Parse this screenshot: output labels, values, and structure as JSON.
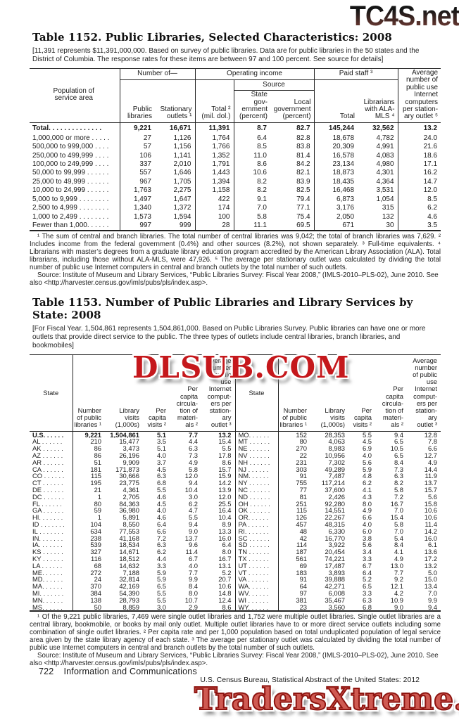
{
  "watermarks": {
    "top": "TC4S.net",
    "middle": "DLSUB.COM",
    "bottom": "TradersXtreme.com"
  },
  "footer": {
    "page": "722",
    "section": "Information and Communications",
    "credit": "U.S. Census Bureau, Statistical Abstract of the United States: 2012"
  },
  "table1152": {
    "title": "Table 1152. Public Libraries, Selected Characteristics: 2008",
    "headnote": "[11,391 represents $11,391,000,000. Based on survey of public libraries. Data are for public libraries in the 50 states and the District of Columbia. The response rates for these items are between 97 and 100 percent. See source for details]",
    "header": {
      "pop": "Population of\nservice area",
      "number_of": "Number of—",
      "operating": "Operating income",
      "source": "Source",
      "paid": "Paid staff ³",
      "avg": "Average\nnumber of\npublic use\nInternet\ncomputers\nper station-\nary outlet ⁵",
      "cols": [
        "Public\nlibraries",
        "Stationary\noutlets ¹",
        "Total ²\n(mil. dol.)",
        "State\ngov-\nernment\n(percent)",
        "Local\ngovernment\n(percent)",
        "Total",
        "Librarians\nwith ALA-\nMLS ⁴"
      ]
    },
    "rows": [
      {
        "label": "Total. . . . . . . . . . . . . .",
        "bold": true,
        "values": [
          "9,221",
          "16,671",
          "11,391",
          "8.7",
          "82.7",
          "145,244",
          "32,562",
          "13.2"
        ]
      },
      {
        "gap": true
      },
      {
        "label": "1,000,000 or more . . . . .",
        "values": [
          "27",
          "1,126",
          "1,764",
          "6.4",
          "82.8",
          "18,678",
          "4,782",
          "24.0"
        ]
      },
      {
        "label": "500,000 to 999,000 . . . .",
        "values": [
          "57",
          "1,156",
          "1,766",
          "8.5",
          "83.8",
          "20,309",
          "4,991",
          "21.6"
        ]
      },
      {
        "label": "250,000 to 499,999 . . . .",
        "values": [
          "106",
          "1,141",
          "1,352",
          "11.0",
          "81.4",
          "16,578",
          "4,083",
          "18.6"
        ]
      },
      {
        "label": "100,000 to 249,999 . . . .",
        "values": [
          "337",
          "2,010",
          "1,791",
          "8.6",
          "84.2",
          "23,134",
          "4,980",
          "17.1"
        ]
      },
      {
        "label": "50,000 to 99,999 . . . . . .",
        "values": [
          "557",
          "1,646",
          "1,443",
          "10.6",
          "82.1",
          "18,873",
          "4,301",
          "16.2"
        ]
      },
      {
        "gap": true
      },
      {
        "label": "25,000 to 49,999 . . . . . .",
        "values": [
          "967",
          "1,705",
          "1,394",
          "8.2",
          "83.9",
          "18,435",
          "4,364",
          "14.7"
        ]
      },
      {
        "label": "10,000 to 24,999 . . . . . .",
        "values": [
          "1,763",
          "2,275",
          "1,158",
          "8.2",
          "82.5",
          "16,468",
          "3,531",
          "12.0"
        ]
      },
      {
        "label": "5,000 to 9,999 . . . . . . . .",
        "values": [
          "1,497",
          "1,647",
          "422",
          "9.1",
          "79.4",
          "6,873",
          "1,054",
          "8.5"
        ]
      },
      {
        "label": "2,500 to 4,999 . . . . . . . .",
        "values": [
          "1,340",
          "1,372",
          "174",
          "7.0",
          "77.1",
          "3,176",
          "315",
          "6.2"
        ]
      },
      {
        "label": "1,000 to 2,499 . . . . . . . .",
        "values": [
          "1,573",
          "1,594",
          "100",
          "5.8",
          "75.4",
          "2,050",
          "132",
          "4.6"
        ]
      },
      {
        "label": "Fewer than 1,000. . . . . .",
        "values": [
          "997",
          "999",
          "28",
          "11.1",
          "69.5",
          "671",
          "30",
          "3.5"
        ]
      }
    ],
    "footnote": "¹ The sum of central and branch libraries. The total number of central libraries was 9,042; the total of branch libraries was 7,629. ² Includes income from the federal government (0.4%) and other sources (8.2%), not shown separately. ³ Full-time equivalents. ⁴ Librarians with master’s degrees from a graduate library education program accredited by the American Library Association (ALA). Total librarians, including those without ALA-MLS, were 47,926. ⁵ The average per stationary outlet was calculated by dividing the total number of public use Internet computers in central and branch outlets by the total number of such outlets.",
    "source": "Source: Institute of Museum and Library Services, “Public Libraries Survey: Fiscal Year 2008,” (IMLS-2010–PLS-02), June 2010. See also <http://harvester.census.gov/imls/pubs/pls/index.asp>."
  },
  "table1153": {
    "title": "Table 1153. Number of Public Libraries and Library Services by State: 2008",
    "headnote": "[For Fiscal Year. 1,504,861 represents 1,504,861,000. Based on Public Libraries Survey. Public libraries can have one or more outlets that provide direct service to the public. The three types of outlets include central libraries, branch libraries, and bookmobiles]",
    "header": {
      "state": "State",
      "cols": [
        "Number\nof public\nlibraries ¹",
        "Library\nvisits\n(1,000s)",
        "Per\ncapita\nvisits ²",
        "Per\ncapita\ncircula-\ntion of\nmateri-\nals ²",
        "Average\nnumber\nof public\nuse\nInternet\ncomput-\ners per\nstation-\nary\noutlet ³"
      ]
    },
    "left": [
      [
        "U.S. . . . . .",
        "9,221",
        "1,504,861",
        "5.1",
        "7.7",
        "13.2"
      ],
      [
        "AL . . . . . .",
        "210",
        "15,477",
        "3.5",
        "4.4",
        "15.4"
      ],
      [
        "AK . . . . . .",
        "86",
        "3,473",
        "5.1",
        "6.3",
        "5.5"
      ],
      [
        "AZ . . . . . .",
        "86",
        "26,196",
        "4.0",
        "7.3",
        "17.8"
      ],
      [
        "AR . . . . . .",
        "51",
        "9,909",
        "3.7",
        "4.9",
        "8.6"
      ],
      [
        "CA . . . . . .",
        "181",
        "171,873",
        "4.5",
        "5.8",
        "15.7"
      ],
      [
        "CO . . . . . .",
        "115",
        "30,666",
        "6.3",
        "12.0",
        "15.9"
      ],
      [
        "CT . . . . . .",
        "195",
        "23,775",
        "6.8",
        "9.4",
        "14.2"
      ],
      [
        "DE . . . . . .",
        "21",
        "4,361",
        "5.5",
        "10.4",
        "13.9"
      ],
      [
        "DC . . . . . .",
        "1",
        "2,705",
        "4.6",
        "3.0",
        "12.0"
      ],
      [
        "FL . . . . . .",
        "80",
        "84,363",
        "4.5",
        "6.2",
        "25.5"
      ],
      [
        "GA . . . . . .",
        "59",
        "36,980",
        "4.0",
        "4.7",
        "16.4"
      ],
      [
        "HI. . . . . . .",
        "1",
        "5,891",
        "4.6",
        "5.5",
        "10.4"
      ],
      [
        "ID . . . . . . .",
        "104",
        "8,550",
        "6.4",
        "9.4",
        "8.9"
      ],
      [
        "IL . . . . . . .",
        "634",
        "77,553",
        "6.6",
        "9.0",
        "13.3"
      ],
      [
        "IN. . . . . . .",
        "238",
        "41,168",
        "7.2",
        "13.7",
        "16.0"
      ],
      [
        "IA. . . . . . .",
        "539",
        "18,534",
        "6.3",
        "9.6",
        "6.4"
      ],
      [
        "KS . . . . . .",
        "327",
        "14,671",
        "6.2",
        "11.4",
        "8.0"
      ],
      [
        "KY . . . . . .",
        "116",
        "18,512",
        "4.4",
        "6.7",
        "16.7"
      ],
      [
        "LA . . . . . .",
        "68",
        "14,632",
        "3.3",
        "4.0",
        "13.1"
      ],
      [
        "ME. . . . . .",
        "272",
        "7,188",
        "5.9",
        "7.7",
        "5.2"
      ],
      [
        "MD. . . . . .",
        "24",
        "32,814",
        "5.9",
        "9.9",
        "20.7"
      ],
      [
        "MA. . . . . .",
        "370",
        "42,169",
        "6.5",
        "8.4",
        "10.6"
      ],
      [
        "MI. . . . . . .",
        "384",
        "54,390",
        "5.5",
        "8.0",
        "14.8"
      ],
      [
        "MN. . . . . .",
        "138",
        "28,793",
        "5.5",
        "10.7",
        "12.4"
      ],
      [
        "MS. . . . . .",
        "50",
        "8,859",
        "3.0",
        "2.9",
        "8.6"
      ]
    ],
    "right": [
      [
        "MO. . . . . .",
        "152",
        "28,353",
        "5.5",
        "9.4",
        "12.8"
      ],
      [
        "MT . . . . . .",
        "80",
        "4,063",
        "4.5",
        "6.5",
        "7.8"
      ],
      [
        "NE . . . . . .",
        "270",
        "8,983",
        "6.9",
        "10.5",
        "6.6"
      ],
      [
        "NV . . . . . .",
        "22",
        "10,956",
        "4.0",
        "6.5",
        "12.7"
      ],
      [
        "NH . . . . . .",
        "231",
        "7,302",
        "5.6",
        "8.4",
        "4.9"
      ],
      [
        "NJ . . . . . .",
        "303",
        "49,289",
        "5.9",
        "7.3",
        "14.4"
      ],
      [
        "NM. . . . . .",
        "91",
        "7,487",
        "4.8",
        "6.3",
        "11.9"
      ],
      [
        "NY . . . . . .",
        "755",
        "117,214",
        "6.2",
        "8.2",
        "13.7"
      ],
      [
        "NC . . . . . .",
        "77",
        "37,600",
        "4.1",
        "5.8",
        "15.7"
      ],
      [
        "ND . . . . . .",
        "81",
        "2,426",
        "4.3",
        "7.2",
        "5.6"
      ],
      [
        "OH . . . . . .",
        "251",
        "92,280",
        "8.0",
        "16.7",
        "15.8"
      ],
      [
        "OK . . . . . .",
        "115",
        "14,551",
        "4.9",
        "7.0",
        "10.6"
      ],
      [
        "OR. . . . . .",
        "126",
        "22,267",
        "6.6",
        "15.4",
        "10.6"
      ],
      [
        "PA . . . . . .",
        "457",
        "48,315",
        "4.0",
        "5.8",
        "11.4"
      ],
      [
        "RI. . . . . . .",
        "48",
        "6,330",
        "6.0",
        "7.0",
        "14.2"
      ],
      [
        "SC . . . . . .",
        "42",
        "16,770",
        "3.8",
        "5.4",
        "16.0"
      ],
      [
        "SD . . . . . .",
        "114",
        "3,922",
        "5.6",
        "8.4",
        "6.1"
      ],
      [
        "TN . . . . . .",
        "187",
        "20,454",
        "3.4",
        "4.1",
        "13.6"
      ],
      [
        "TX . . . . . .",
        "561",
        "74,221",
        "3.3",
        "4.9",
        "17.2"
      ],
      [
        "UT . . . . . .",
        "69",
        "17,487",
        "6.7",
        "13.0",
        "13.2"
      ],
      [
        "VT . . . . . .",
        "183",
        "3,893",
        "6.4",
        "7.7",
        "5.0"
      ],
      [
        "VA . . . . . .",
        "91",
        "39,888",
        "5.2",
        "9.2",
        "15.0"
      ],
      [
        "WA. . . . . .",
        "64",
        "42,271",
        "6.5",
        "12.1",
        "13.4"
      ],
      [
        "WV. . . . . .",
        "97",
        "6,008",
        "3.3",
        "4.2",
        "7.0"
      ],
      [
        "WI . . . . . .",
        "381",
        "35,467",
        "6.3",
        "10.9",
        "9.9"
      ],
      [
        "WY. . . . . .",
        "23",
        "3,560",
        "6.8",
        "9.0",
        "9.4"
      ]
    ],
    "footnote": "¹ Of the 9,221 public libraries, 7,469 were single outlet libraries and 1,752 were multiple outlet libraries. Single outlet libraries are a central library, bookmobile, or books by mail only outlet.  Multiple outlet libraries have to or more direct service outlets including some combination of single outlet libraries. ² Per capita rate and per 1,000 population based on total unduplicated population of legal service area given by the state library agency of each state. ³ The average per stationary outlet was calculated by dividing the total number of public use Internet computers in central and branch outlets by the total number of such outlets.",
    "source": "Source: Institute of Museum and Library Services, “Public Libraries Survey: Fiscal Year 2008,” (IMLS-2010–PLS-02), June 2010. See also <http://harvester.census.gov/imls/pubs/pls/index.asp>."
  }
}
